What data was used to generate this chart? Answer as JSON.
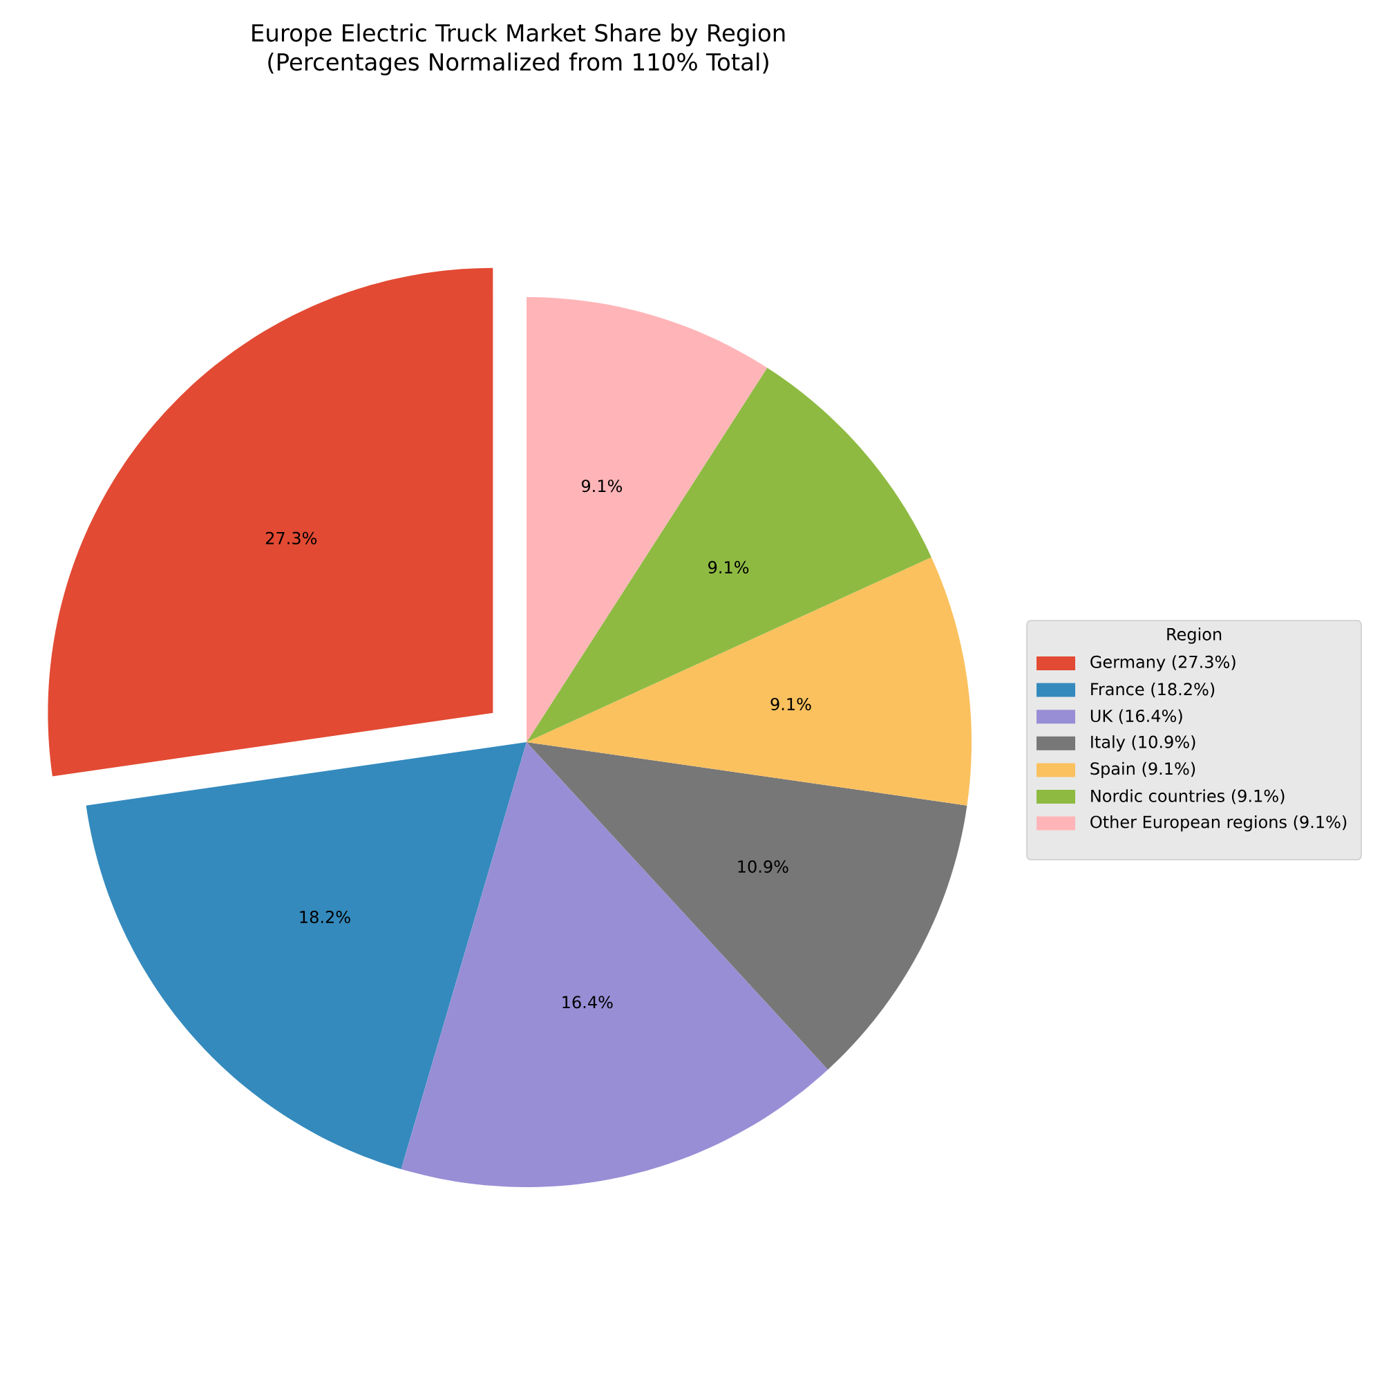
{
  "chart_data": {
    "type": "pie",
    "title": "Europe Electric Truck Market Share by Region\n(Percentages Normalized from 110% Total)",
    "legend_title": "Region",
    "categories": [
      "Germany (27.3%)",
      "France (18.2%)",
      "UK (16.4%)",
      "Italy (10.9%)",
      "Spain (9.1%)",
      "Nordic countries (9.1%)",
      "Other European regions (9.1%)"
    ],
    "values": [
      27.3,
      18.2,
      16.4,
      10.9,
      9.1,
      9.1,
      9.1
    ],
    "value_labels": [
      "27.3%",
      "18.2%",
      "16.4%",
      "10.9%",
      "9.1%",
      "9.1%",
      "9.1%"
    ],
    "colors": [
      "#e24a33",
      "#348abd",
      "#988ed5",
      "#777777",
      "#fbc15e",
      "#8eba42",
      "#ffb5b8"
    ],
    "legend": "right"
  }
}
